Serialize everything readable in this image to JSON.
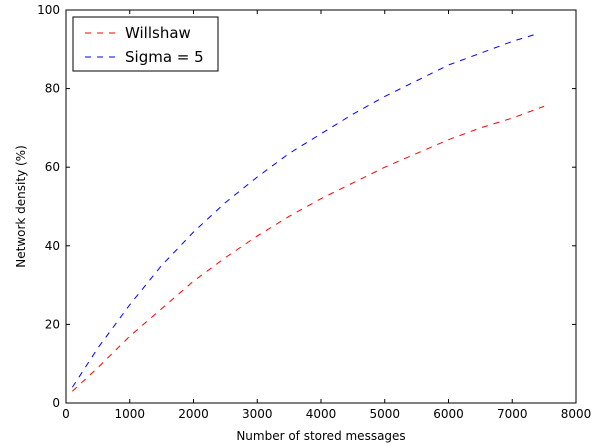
{
  "chart_data": {
    "type": "line",
    "title": "",
    "xlabel": "Number of stored messages",
    "ylabel": "Network density (%)",
    "xlim": [
      0,
      8000
    ],
    "ylim": [
      0,
      100
    ],
    "xticks": [
      0,
      1000,
      2000,
      3000,
      4000,
      5000,
      6000,
      7000,
      8000
    ],
    "yticks": [
      0,
      20,
      40,
      60,
      80,
      100
    ],
    "grid": false,
    "legend_position": "top-left",
    "series": [
      {
        "name": "Willshaw",
        "color": "#ff0000",
        "line_style": "dashed",
        "x": [
          100,
          500,
          1000,
          1500,
          2000,
          2500,
          3000,
          3500,
          4000,
          4500,
          5000,
          5500,
          6000,
          6500,
          7000,
          7500
        ],
        "y": [
          3,
          9,
          17,
          24,
          31,
          37,
          42.5,
          47.5,
          52,
          56,
          60,
          63.5,
          67,
          70,
          72.5,
          75.5
        ]
      },
      {
        "name": "Sigma = 5",
        "color": "#0000ff",
        "line_style": "dashed",
        "x": [
          100,
          500,
          1000,
          1500,
          2000,
          2500,
          3000,
          3500,
          4000,
          4500,
          5000,
          5500,
          6000,
          6500,
          7000,
          7400
        ],
        "y": [
          4,
          14,
          25,
          35,
          43.5,
          51,
          57.5,
          63.5,
          68.5,
          73.5,
          78,
          82,
          86,
          89,
          92,
          94
        ]
      }
    ]
  }
}
